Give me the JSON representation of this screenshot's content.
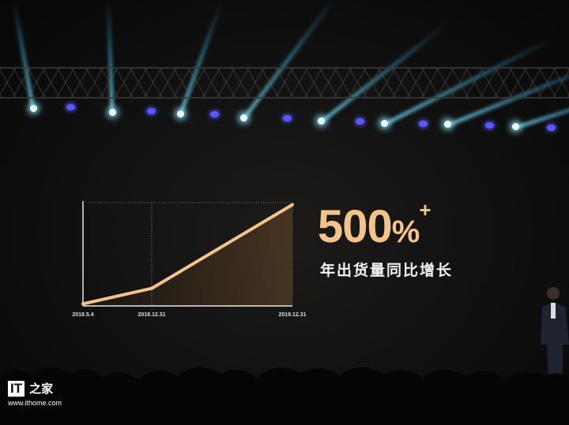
{
  "slide": {
    "headline_number": "500",
    "headline_percent": "%",
    "headline_plus": "+",
    "subtitle": "年出货量同比增长"
  },
  "watermark": {
    "logo_letters": "IT",
    "logo_chinese": "之家",
    "url": "www.ithome.com"
  },
  "colors": {
    "line": "#f3c48a",
    "axis": "#e8e8e8",
    "background": "#0b0b0c",
    "beam": "#78e6ff",
    "led": "#5a58ff"
  },
  "chart_data": {
    "type": "line",
    "title": "",
    "xlabel": "",
    "ylabel": "",
    "categories": [
      "2018.5.4",
      "2018.12.31",
      "2019.12.31"
    ],
    "values": [
      2,
      17,
      98
    ],
    "ylim": [
      0,
      100
    ],
    "grid": "vertical dotted line at 2018.12.31 and dotted top border",
    "legend": "none",
    "fill": "gradient area under line"
  }
}
